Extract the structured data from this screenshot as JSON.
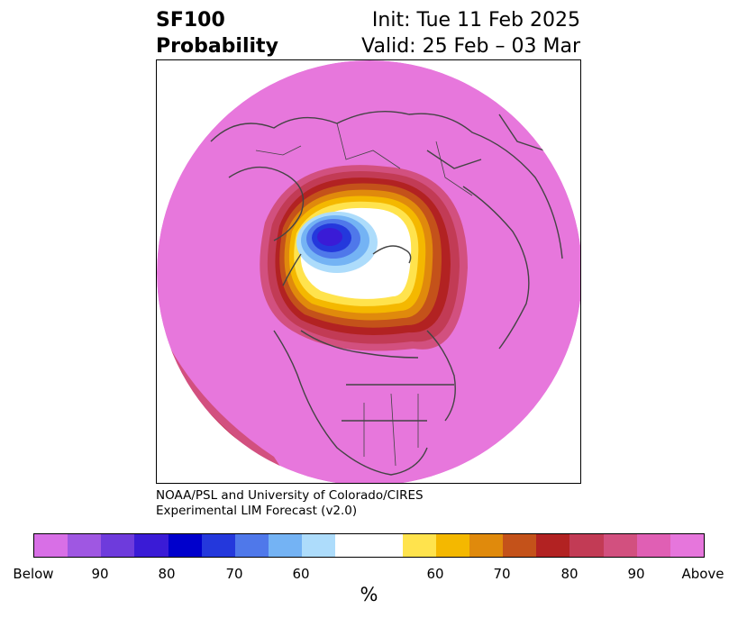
{
  "title": {
    "line1": "SF100",
    "line2": "Probability",
    "init": "Init: Tue 11 Feb 2025",
    "valid": "Valid: 25 Feb – 03 Mar"
  },
  "credit": {
    "line1": "NOAA/PSL and University of Colorado/CIRES",
    "line2": "Experimental LIM Forecast (v2.0)"
  },
  "colorbar": {
    "unit": "%",
    "colors": [
      "#d86fe6",
      "#9f57e2",
      "#6e3bdc",
      "#3a1bd6",
      "#0000cc",
      "#2438dc",
      "#4f78ea",
      "#74b3f4",
      "#addcfb",
      "#ffffff",
      "#ffe34d",
      "#f4b800",
      "#e08a0c",
      "#c4521a",
      "#b22222",
      "#c23b55",
      "#d2507f",
      "#e05fb4",
      "#e676dc"
    ],
    "ticks": [
      "Below",
      "90",
      "80",
      "70",
      "60",
      "60",
      "70",
      "80",
      "90",
      "Above"
    ]
  },
  "map": {
    "background": "#e777dc",
    "region": "Northern Hemisphere polar stereographic",
    "shading": {
      "below_core": "#2438dc",
      "below_mid": "#4f78ea",
      "below_light": "#addcfb",
      "neutral": "#ffffff",
      "above_low": "#ffe34d",
      "above_mid": "#f4b800",
      "above_high": "#b22222",
      "above_top": "#d2507f",
      "coastline": "#444444"
    }
  }
}
